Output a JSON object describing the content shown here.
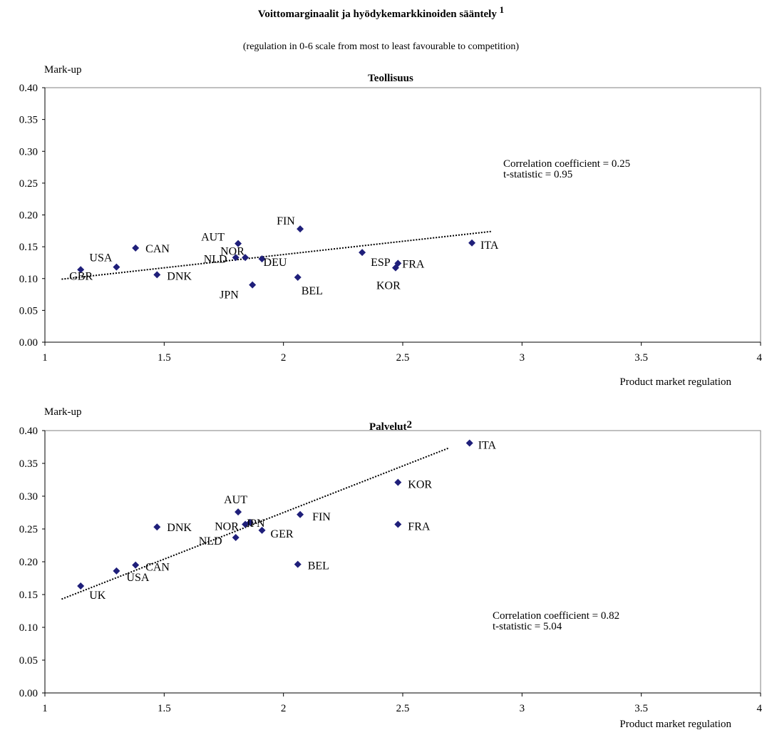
{
  "title": "Voittomarginaalit ja hyödykemarkkinoiden sääntely",
  "title_footnote": "1",
  "subtitle": "(regulation in 0-6 scale from most to least favourable to competition)",
  "chart_data": [
    {
      "type": "scatter",
      "title": "Teollisuus",
      "title_footnote": "",
      "ylabel": "Mark-up",
      "xlabel": "Product market regulation",
      "xlim": [
        1,
        4
      ],
      "ylim": [
        0,
        0.4
      ],
      "xticks": [
        "1",
        "1.5",
        "2",
        "2.5",
        "3",
        "3.5",
        "4"
      ],
      "yticks": [
        "0.00",
        "0.05",
        "0.10",
        "0.15",
        "0.20",
        "0.25",
        "0.30",
        "0.35",
        "0.40"
      ],
      "grid": false,
      "marker_color": "#1f1f7a",
      "trendline": {
        "x": [
          1.07,
          2.87
        ],
        "y": [
          0.099,
          0.174
        ]
      },
      "annotations": [
        "Correlation coefficient = 0.25",
        "t-statistic = 0.95"
      ],
      "points": [
        {
          "label": "GBR",
          "x": 1.15,
          "y": 0.114
        },
        {
          "label": "USA",
          "x": 1.3,
          "y": 0.118
        },
        {
          "label": "CAN",
          "x": 1.38,
          "y": 0.148
        },
        {
          "label": "DNK",
          "x": 1.47,
          "y": 0.106
        },
        {
          "label": "NLD",
          "x": 1.8,
          "y": 0.133
        },
        {
          "label": "AUT",
          "x": 1.81,
          "y": 0.155
        },
        {
          "label": "NOR",
          "x": 1.84,
          "y": 0.133
        },
        {
          "label": "JPN",
          "x": 1.87,
          "y": 0.09
        },
        {
          "label": "DEU",
          "x": 1.91,
          "y": 0.131
        },
        {
          "label": "BEL",
          "x": 2.06,
          "y": 0.102
        },
        {
          "label": "FIN",
          "x": 2.07,
          "y": 0.178
        },
        {
          "label": "ESP",
          "x": 2.33,
          "y": 0.141
        },
        {
          "label": "FRA",
          "x": 2.48,
          "y": 0.124
        },
        {
          "label": "KOR",
          "x": 2.47,
          "y": 0.117
        },
        {
          "label": "ITA",
          "x": 2.79,
          "y": 0.156
        }
      ]
    },
    {
      "type": "scatter",
      "title": "Palvelut",
      "title_footnote": "2",
      "ylabel": "Mark-up",
      "xlabel": "Product market regulation",
      "xlim": [
        1,
        4
      ],
      "ylim": [
        0,
        0.4
      ],
      "xticks": [
        "1",
        "1.5",
        "2",
        "2.5",
        "3",
        "3.5",
        "4"
      ],
      "yticks": [
        "0.00",
        "0.05",
        "0.10",
        "0.15",
        "0.20",
        "0.25",
        "0.30",
        "0.35",
        "0.40"
      ],
      "grid": false,
      "marker_color": "#1f1f7a",
      "trendline": {
        "x": [
          1.07,
          2.69
        ],
        "y": [
          0.143,
          0.373
        ]
      },
      "annotations": [
        "Correlation coefficient = 0.82",
        "t-statistic = 5.04"
      ],
      "points": [
        {
          "label": "UK",
          "x": 1.15,
          "y": 0.163
        },
        {
          "label": "USA",
          "x": 1.3,
          "y": 0.186
        },
        {
          "label": "CAN",
          "x": 1.38,
          "y": 0.195
        },
        {
          "label": "DNK",
          "x": 1.47,
          "y": 0.253
        },
        {
          "label": "NLD",
          "x": 1.8,
          "y": 0.237
        },
        {
          "label": "AUT",
          "x": 1.81,
          "y": 0.276
        },
        {
          "label": "NOR",
          "x": 1.84,
          "y": 0.257
        },
        {
          "label": "JPN",
          "x": 1.86,
          "y": 0.26
        },
        {
          "label": "GER",
          "x": 1.91,
          "y": 0.248
        },
        {
          "label": "BEL",
          "x": 2.06,
          "y": 0.196
        },
        {
          "label": "FIN",
          "x": 2.07,
          "y": 0.272
        },
        {
          "label": "FRA",
          "x": 2.48,
          "y": 0.257
        },
        {
          "label": "KOR",
          "x": 2.48,
          "y": 0.321
        },
        {
          "label": "ITA",
          "x": 2.78,
          "y": 0.381
        }
      ]
    }
  ]
}
